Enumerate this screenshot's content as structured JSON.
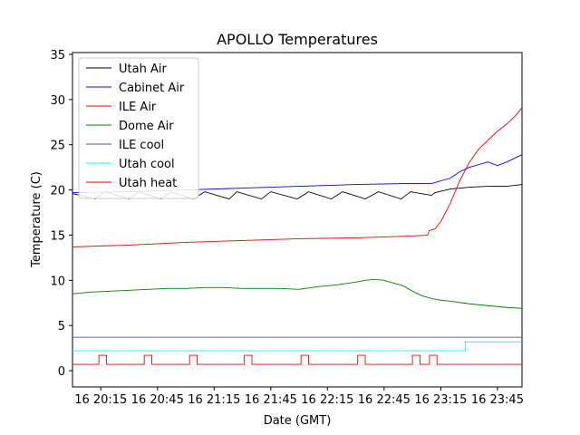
{
  "chart_data": {
    "type": "line",
    "title": "APOLLO Temperatures",
    "xlabel": "Date (GMT)",
    "ylabel": "Temperature (C)",
    "x_unit": "minutes since 20:00 GMT",
    "xlim": [
      0,
      238
    ],
    "ylim": [
      -1.8,
      35.2
    ],
    "yticks": [
      0,
      5,
      10,
      15,
      20,
      25,
      30,
      35
    ],
    "ytick_labels": [
      "0",
      "5",
      "10",
      "15",
      "20",
      "25",
      "30",
      "35"
    ],
    "xticks": [
      15,
      45,
      75,
      105,
      135,
      165,
      195,
      225
    ],
    "xtick_labels": [
      "16 20:15",
      "16 20:45",
      "16 21:15",
      "16 21:45",
      "16 22:15",
      "16 22:45",
      "16 23:15",
      "16 23:45"
    ],
    "legend_position": "top-left",
    "series": [
      {
        "name": "Utah Air",
        "color": "#000000",
        "x": [
          0,
          12,
          17,
          30,
          35,
          47,
          52,
          64,
          70,
          83,
          87,
          100,
          105,
          119,
          125,
          137,
          143,
          155,
          162,
          174,
          179,
          190,
          192,
          200,
          210,
          220,
          230,
          238
        ],
        "y": [
          19.6,
          19.0,
          19.8,
          19.0,
          19.8,
          19.0,
          19.8,
          19.0,
          19.8,
          19.0,
          19.8,
          19.0,
          19.8,
          19.0,
          19.8,
          19.0,
          19.8,
          19.0,
          19.8,
          19.0,
          19.8,
          19.4,
          19.7,
          20.1,
          20.3,
          20.4,
          20.4,
          20.6
        ]
      },
      {
        "name": "Cabinet Air",
        "color": "#0000ff",
        "x": [
          0,
          30,
          60,
          90,
          120,
          150,
          175,
          190,
          200,
          205,
          210,
          215,
          220,
          225,
          230,
          238
        ],
        "y": [
          19.7,
          19.8,
          20.0,
          20.2,
          20.4,
          20.6,
          20.7,
          20.7,
          21.3,
          22.0,
          22.5,
          22.8,
          23.1,
          22.7,
          23.1,
          23.9
        ]
      },
      {
        "name": "ILE Air",
        "color": "#ff0000",
        "x": [
          0,
          30,
          60,
          90,
          120,
          150,
          180,
          188,
          189,
          192,
          195,
          200,
          205,
          210,
          215,
          220,
          225,
          230,
          235,
          238
        ],
        "y": [
          13.7,
          13.9,
          14.2,
          14.4,
          14.6,
          14.7,
          14.9,
          15.0,
          15.5,
          15.7,
          16.5,
          18.5,
          21.0,
          23.0,
          24.5,
          25.5,
          26.5,
          27.3,
          28.3,
          29.1
        ]
      },
      {
        "name": "Dome Air",
        "color": "#008000",
        "x": [
          0,
          10,
          20,
          30,
          40,
          50,
          60,
          70,
          80,
          90,
          100,
          110,
          120,
          130,
          140,
          150,
          155,
          160,
          165,
          168,
          170,
          175,
          180,
          185,
          190,
          195,
          200,
          210,
          220,
          230,
          238
        ],
        "y": [
          8.5,
          8.7,
          8.8,
          8.9,
          9.0,
          9.1,
          9.1,
          9.2,
          9.2,
          9.1,
          9.1,
          9.1,
          9.0,
          9.3,
          9.5,
          9.8,
          10.0,
          10.1,
          10.0,
          9.8,
          9.7,
          9.4,
          8.8,
          8.3,
          8.0,
          7.8,
          7.7,
          7.4,
          7.2,
          7.0,
          6.9
        ]
      },
      {
        "name": "ILE cool",
        "color": "#5050a0",
        "x": [
          0,
          238
        ],
        "y": [
          3.7,
          3.7
        ]
      },
      {
        "name": "Utah cool",
        "color": "#00ffff",
        "x": [
          0,
          208,
          208,
          238
        ],
        "y": [
          2.2,
          2.2,
          3.2,
          3.2
        ]
      },
      {
        "name": "Utah heat",
        "color": "#ff0000",
        "x": [
          0,
          14,
          14,
          18,
          18,
          38,
          38,
          42,
          42,
          62,
          62,
          66,
          66,
          91,
          91,
          95,
          95,
          121,
          121,
          125,
          125,
          151,
          151,
          155,
          155,
          180,
          180,
          184,
          184,
          189,
          189,
          193,
          193,
          238
        ],
        "y": [
          0.7,
          0.7,
          1.7,
          1.7,
          0.7,
          0.7,
          1.7,
          1.7,
          0.7,
          0.7,
          1.7,
          1.7,
          0.7,
          0.7,
          1.7,
          1.7,
          0.7,
          0.7,
          1.7,
          1.7,
          0.7,
          0.7,
          1.7,
          1.7,
          0.7,
          0.7,
          1.7,
          1.7,
          0.7,
          0.7,
          1.7,
          1.7,
          0.7,
          0.7
        ]
      }
    ]
  }
}
